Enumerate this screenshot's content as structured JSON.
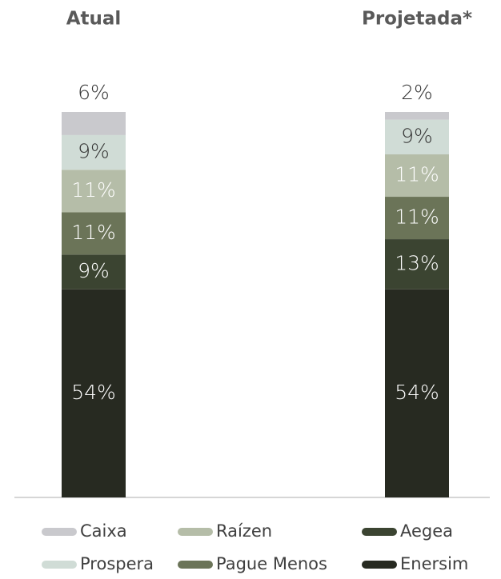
{
  "chart_data": {
    "type": "stacked_bar",
    "categories": [
      "Atual",
      "Projetada*"
    ],
    "series": [
      {
        "name": "Caixa",
        "color": "#c9c9cd",
        "values": [
          6,
          2
        ],
        "value_labels": [
          "6%",
          "2%"
        ]
      },
      {
        "name": "Prospera",
        "color": "#d0dcd6",
        "values": [
          9,
          9
        ],
        "value_labels": [
          "9%",
          "9%"
        ]
      },
      {
        "name": "Raízen",
        "color": "#b5bda8",
        "values": [
          11,
          11
        ],
        "value_labels": [
          "11%",
          "11%"
        ]
      },
      {
        "name": "Pague Menos",
        "color": "#6b7458",
        "values": [
          11,
          11
        ],
        "value_labels": [
          "11%",
          "11%"
        ]
      },
      {
        "name": "Aegea",
        "color": "#3b4431",
        "values": [
          9,
          13
        ],
        "value_labels": [
          "9%",
          "13%"
        ]
      },
      {
        "name": "Enersim",
        "color": "#272a21",
        "values": [
          54,
          54
        ],
        "value_labels": [
          "54%",
          "54%"
        ]
      }
    ]
  }
}
